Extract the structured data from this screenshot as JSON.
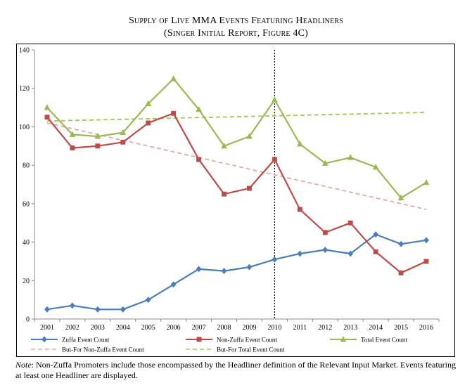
{
  "header": {
    "title_line1": "Supply of Live MMA Events Featuring Headliners",
    "title_line2": "(Singer Initial Report, Figure 4C)"
  },
  "chart_data": {
    "type": "line",
    "x": [
      2001,
      2002,
      2003,
      2004,
      2005,
      2006,
      2007,
      2008,
      2009,
      2010,
      2011,
      2012,
      2013,
      2014,
      2015,
      2016
    ],
    "ylim": [
      0,
      140
    ],
    "yticks": [
      0,
      20,
      40,
      60,
      80,
      100,
      120,
      140
    ],
    "grid": false,
    "legend_position": "bottom",
    "vertical_marker_x": 2010,
    "series": [
      {
        "name": "Zuffa Event Count",
        "color": "#4a7ebb",
        "marker": "diamond",
        "style": "solid",
        "values": [
          5,
          7,
          5,
          5,
          10,
          18,
          26,
          25,
          27,
          31,
          34,
          36,
          34,
          44,
          39,
          41
        ]
      },
      {
        "name": "Non-Zuffa Event Count",
        "color": "#be4b48",
        "marker": "square",
        "style": "solid",
        "values": [
          105,
          89,
          90,
          92,
          102,
          107,
          83,
          65,
          68,
          83,
          57,
          45,
          50,
          35,
          24,
          30
        ]
      },
      {
        "name": "Total Event Count",
        "color": "#98b954",
        "marker": "triangle",
        "style": "solid",
        "values": [
          110,
          96,
          95,
          97,
          112,
          125,
          109,
          90,
          95,
          114,
          91,
          81,
          84,
          79,
          63,
          71
        ]
      },
      {
        "name": "But-For Non-Zuffa Event Count",
        "color": "#e6a9a5",
        "marker": "none",
        "style": "dashed",
        "values": [
          102,
          99,
          96,
          93,
          90,
          87,
          84,
          81,
          78,
          75,
          72,
          69,
          66,
          63,
          60,
          57
        ]
      },
      {
        "name": "But-For Total Event Count",
        "color": "#9bcc4a",
        "marker": "none",
        "style": "dashed",
        "values": [
          103,
          103.3,
          103.6,
          103.9,
          104.2,
          104.5,
          104.8,
          105.1,
          105.4,
          105.7,
          106,
          106.3,
          106.6,
          106.9,
          107.2,
          107.5
        ]
      }
    ]
  },
  "note": {
    "label": "Note",
    "text": ": Non-Zuffa Promoters include those encompassed by the Headliner definition of the Relevant Input Market. Events featuring at least one Headliner are displayed."
  }
}
